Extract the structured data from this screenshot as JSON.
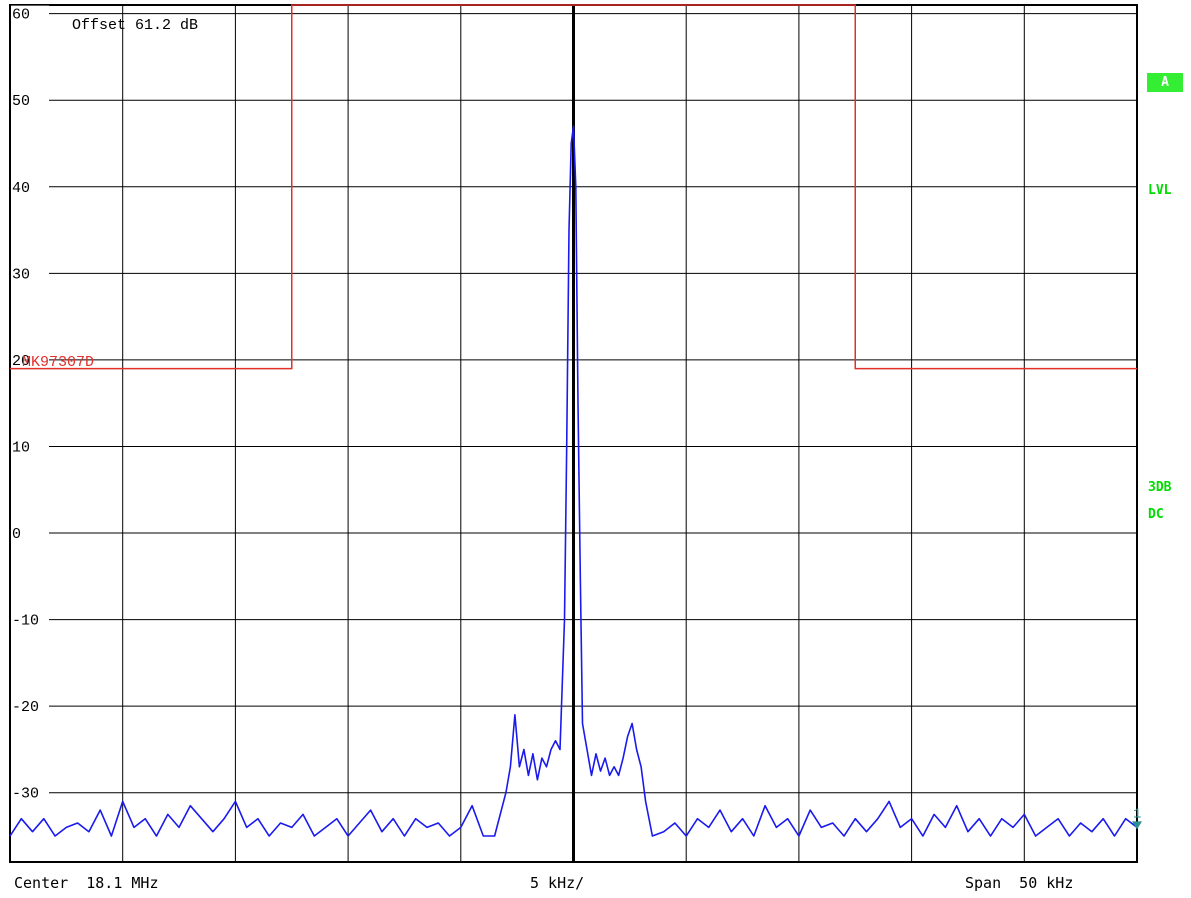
{
  "chart_data": {
    "type": "line",
    "title": "",
    "xlabel": "",
    "ylabel": "",
    "x_unit": "kHz offset from center",
    "xlim": [
      -25,
      25
    ],
    "ylim": [
      -38,
      61
    ],
    "yticks": [
      60,
      50,
      40,
      30,
      20,
      10,
      0,
      -10,
      -20,
      -30
    ],
    "ytick_labels": [
      "60",
      "50",
      "40",
      "30",
      "20",
      "10",
      "0",
      "-10",
      "-20",
      "-30"
    ],
    "grid": true,
    "offset_annotation": "Offset   61.2 dB",
    "limit_line": {
      "name": "MK97307D",
      "color": "#e0302a",
      "points": [
        [
          -25,
          19
        ],
        [
          -12.5,
          19
        ],
        [
          -12.5,
          61
        ],
        [
          12.5,
          61
        ],
        [
          12.5,
          19
        ],
        [
          25,
          19
        ]
      ]
    },
    "series": [
      {
        "color": "#1a1aee",
        "points": [
          [
            -25,
            -35
          ],
          [
            -24.5,
            -33
          ],
          [
            -24,
            -34.5
          ],
          [
            -23.5,
            -33
          ],
          [
            -23,
            -35
          ],
          [
            -22.5,
            -34
          ],
          [
            -22,
            -33.5
          ],
          [
            -21.5,
            -34.5
          ],
          [
            -21,
            -32
          ],
          [
            -20.5,
            -35
          ],
          [
            -20,
            -31
          ],
          [
            -19.5,
            -34
          ],
          [
            -19,
            -33
          ],
          [
            -18.5,
            -35
          ],
          [
            -18,
            -32.5
          ],
          [
            -17.5,
            -34
          ],
          [
            -17,
            -31.5
          ],
          [
            -16.5,
            -33
          ],
          [
            -16,
            -34.5
          ],
          [
            -15.5,
            -33
          ],
          [
            -15,
            -31
          ],
          [
            -14.5,
            -34
          ],
          [
            -14,
            -33
          ],
          [
            -13.5,
            -35
          ],
          [
            -13,
            -33.5
          ],
          [
            -12.5,
            -34
          ],
          [
            -12,
            -32.5
          ],
          [
            -11.5,
            -35
          ],
          [
            -11,
            -34
          ],
          [
            -10.5,
            -33
          ],
          [
            -10,
            -35
          ],
          [
            -9.5,
            -33.5
          ],
          [
            -9,
            -32
          ],
          [
            -8.5,
            -34.5
          ],
          [
            -8,
            -33
          ],
          [
            -7.5,
            -35
          ],
          [
            -7,
            -33
          ],
          [
            -6.5,
            -34
          ],
          [
            -6,
            -33.5
          ],
          [
            -5.5,
            -35
          ],
          [
            -5,
            -34
          ],
          [
            -4.5,
            -31.5
          ],
          [
            -4,
            -35
          ],
          [
            -3.5,
            -35
          ],
          [
            -3,
            -30
          ],
          [
            -2.8,
            -27
          ],
          [
            -2.6,
            -21
          ],
          [
            -2.4,
            -27
          ],
          [
            -2.2,
            -25
          ],
          [
            -2,
            -28
          ],
          [
            -1.8,
            -25.5
          ],
          [
            -1.6,
            -28.5
          ],
          [
            -1.4,
            -26
          ],
          [
            -1.2,
            -27
          ],
          [
            -1,
            -25
          ],
          [
            -0.8,
            -24
          ],
          [
            -0.6,
            -25
          ],
          [
            -0.4,
            -10
          ],
          [
            -0.3,
            10
          ],
          [
            -0.2,
            35
          ],
          [
            -0.1,
            45
          ],
          [
            0,
            47
          ],
          [
            0.1,
            40
          ],
          [
            0.2,
            15
          ],
          [
            0.3,
            -5
          ],
          [
            0.4,
            -22
          ],
          [
            0.6,
            -25
          ],
          [
            0.8,
            -28
          ],
          [
            1,
            -25.5
          ],
          [
            1.2,
            -27.5
          ],
          [
            1.4,
            -26
          ],
          [
            1.6,
            -28
          ],
          [
            1.8,
            -27
          ],
          [
            2,
            -28
          ],
          [
            2.2,
            -26
          ],
          [
            2.4,
            -23.5
          ],
          [
            2.6,
            -22
          ],
          [
            2.8,
            -25
          ],
          [
            3,
            -27
          ],
          [
            3.2,
            -31
          ],
          [
            3.5,
            -35
          ],
          [
            4,
            -34.5
          ],
          [
            4.5,
            -33.5
          ],
          [
            5,
            -35
          ],
          [
            5.5,
            -33
          ],
          [
            6,
            -34
          ],
          [
            6.5,
            -32
          ],
          [
            7,
            -34.5
          ],
          [
            7.5,
            -33
          ],
          [
            8,
            -35
          ],
          [
            8.5,
            -31.5
          ],
          [
            9,
            -34
          ],
          [
            9.5,
            -33
          ],
          [
            10,
            -35
          ],
          [
            10.5,
            -32
          ],
          [
            11,
            -34
          ],
          [
            11.5,
            -33.5
          ],
          [
            12,
            -35
          ],
          [
            12.5,
            -33
          ],
          [
            13,
            -34.5
          ],
          [
            13.5,
            -33
          ],
          [
            14,
            -31
          ],
          [
            14.5,
            -34
          ],
          [
            15,
            -33
          ],
          [
            15.5,
            -35
          ],
          [
            16,
            -32.5
          ],
          [
            16.5,
            -34
          ],
          [
            17,
            -31.5
          ],
          [
            17.5,
            -34.5
          ],
          [
            18,
            -33
          ],
          [
            18.5,
            -35
          ],
          [
            19,
            -33
          ],
          [
            19.5,
            -34
          ],
          [
            20,
            -32.5
          ],
          [
            20.5,
            -35
          ],
          [
            21,
            -34
          ],
          [
            21.5,
            -33
          ],
          [
            22,
            -35
          ],
          [
            22.5,
            -33.5
          ],
          [
            23,
            -34.5
          ],
          [
            23.5,
            -33
          ],
          [
            24,
            -35
          ],
          [
            24.5,
            -33
          ],
          [
            25,
            -34
          ]
        ]
      }
    ],
    "footer": {
      "center": "Center  18.1 MHz",
      "division": "5 kHz/",
      "span": "Span  50 kHz"
    },
    "side_labels": {
      "trace": "A",
      "lvl": "LVL",
      "rbw": "3DB",
      "coupling": "DC"
    },
    "marker_label": "1"
  }
}
